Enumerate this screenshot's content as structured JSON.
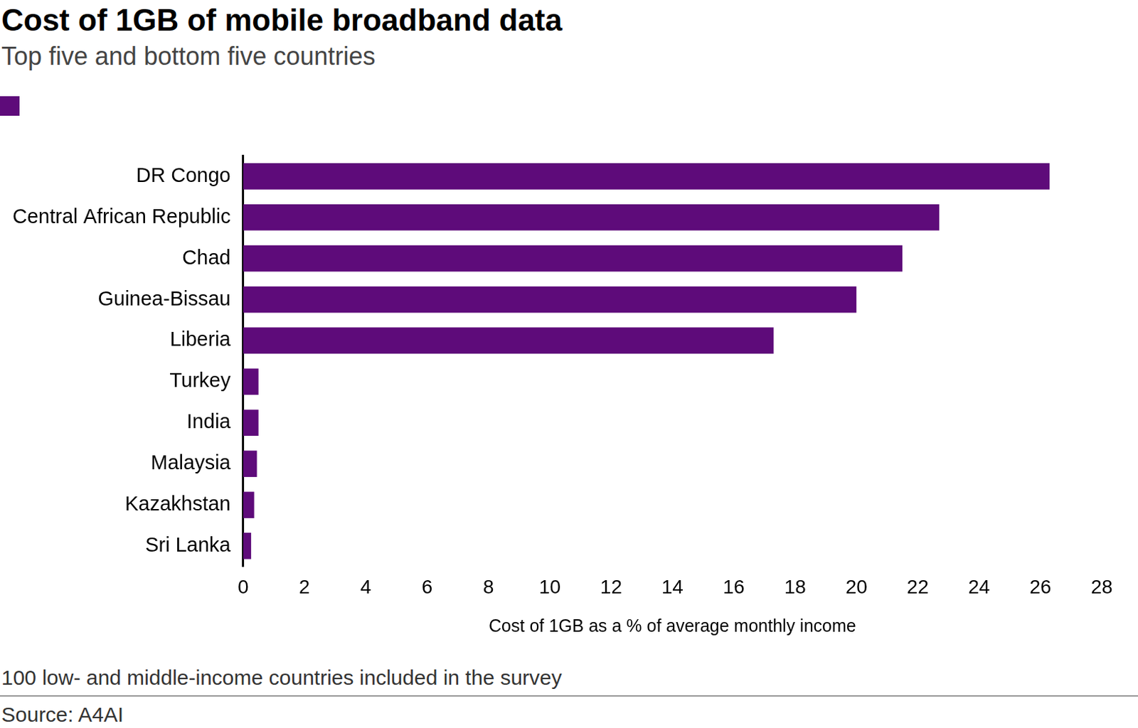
{
  "chart_data": {
    "type": "bar",
    "title": "Cost of 1GB of mobile broadband data",
    "subtitle": "Top five and bottom five countries",
    "categories": [
      "DR Congo",
      "Central African Republic",
      "Chad",
      "Guinea-Bissau",
      "Liberia",
      "Turkey",
      "India",
      "Malaysia",
      "Kazakhstan",
      "Sri Lanka"
    ],
    "values": [
      26.3,
      22.7,
      21.5,
      20.0,
      17.3,
      0.5,
      0.5,
      0.45,
      0.36,
      0.26
    ],
    "color": "#5e0b7a",
    "orientation": "horizontal",
    "xlabel": "Cost of 1GB as a % of average monthly income",
    "xlim": [
      0,
      28
    ],
    "xticks": [
      0,
      2,
      4,
      6,
      8,
      10,
      12,
      14,
      16,
      18,
      20,
      22,
      24,
      26,
      28
    ],
    "grid": false,
    "note": "100 low- and middle-income countries included in the survey",
    "source": "Source: A4AI"
  }
}
